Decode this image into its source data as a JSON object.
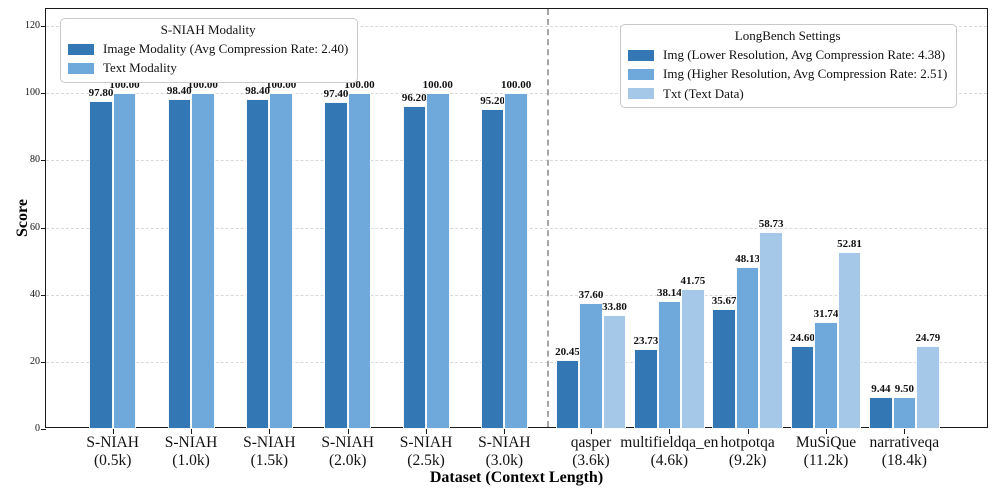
{
  "chart_data": {
    "type": "bar",
    "title": "",
    "xlabel": "Dataset (Context Length)",
    "ylabel": "Score",
    "ylim": [
      0,
      120
    ],
    "yticks": [
      0,
      20,
      40,
      60,
      80,
      100,
      120
    ],
    "grid": "horizontal-dashed",
    "value_label_format": "2-decimals-bold",
    "separator": "vertical-dashed-line-between-sections",
    "sections": [
      {
        "name": "S-NIAH",
        "legend_title": "S-NIAH Modality",
        "legend_position": "upper-left-inside",
        "categories": [
          {
            "name": "S-NIAH",
            "context": "(0.5k)"
          },
          {
            "name": "S-NIAH",
            "context": "(1.0k)"
          },
          {
            "name": "S-NIAH",
            "context": "(1.5k)"
          },
          {
            "name": "S-NIAH",
            "context": "(2.0k)"
          },
          {
            "name": "S-NIAH",
            "context": "(2.5k)"
          },
          {
            "name": "S-NIAH",
            "context": "(3.0k)"
          }
        ],
        "series": [
          {
            "name": "Image Modality (Avg Compression Rate: 2.40)",
            "color": "#3377b5",
            "values": [
              97.8,
              98.4,
              98.4,
              97.4,
              96.2,
              95.2
            ]
          },
          {
            "name": "Text Modality",
            "color": "#6fa8db",
            "values": [
              100.0,
              100.0,
              100.0,
              100.0,
              100.0,
              100.0
            ]
          }
        ]
      },
      {
        "name": "LongBench",
        "legend_title": "LongBench Settings",
        "legend_position": "upper-right-inside",
        "categories": [
          {
            "name": "qasper",
            "context": "(3.6k)"
          },
          {
            "name": "multifieldqa_en",
            "context": "(4.6k)"
          },
          {
            "name": "hotpotqa",
            "context": "(9.2k)"
          },
          {
            "name": "MuSiQue",
            "context": "(11.2k)"
          },
          {
            "name": "narrativeqa",
            "context": "(18.4k)"
          }
        ],
        "series": [
          {
            "name": "Img (Lower Resolution, Avg Compression Rate: 4.38)",
            "color": "#3377b5",
            "values": [
              20.45,
              23.73,
              35.67,
              24.6,
              9.44
            ]
          },
          {
            "name": "Img (Higher Resolution, Avg Compression Rate: 2.51)",
            "color": "#6fa8db",
            "values": [
              37.6,
              38.14,
              48.13,
              31.74,
              9.5
            ]
          },
          {
            "name": "Txt (Text Data)",
            "color": "#a5c8e9",
            "values": [
              33.8,
              41.75,
              58.73,
              52.81,
              24.79
            ]
          }
        ]
      }
    ]
  }
}
